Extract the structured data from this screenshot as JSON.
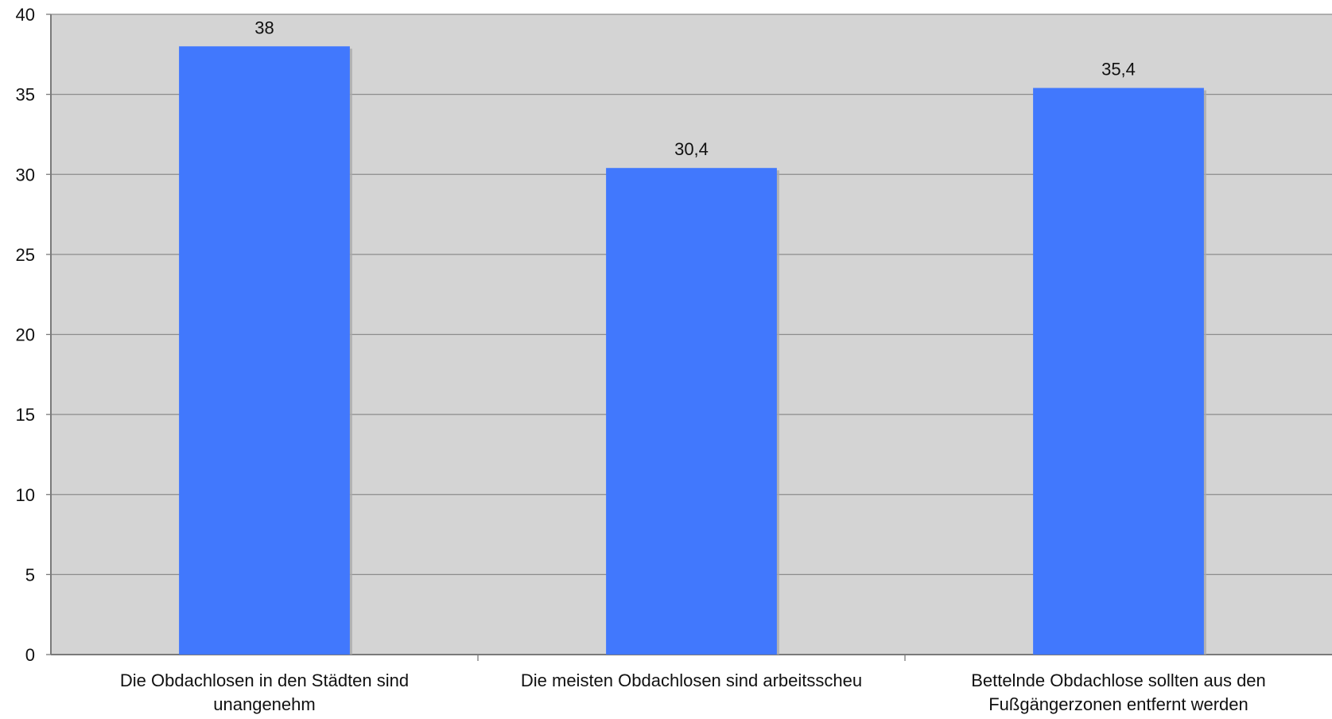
{
  "chart_data": {
    "type": "bar",
    "categories": [
      [
        "Die Obdachlosen in den Städten sind",
        "unangenehm"
      ],
      [
        "Die meisten Obdachlosen sind arbeitsscheu"
      ],
      [
        "Bettelnde Obdachlose sollten aus den",
        "Fußgängerzonen entfernt werden"
      ]
    ],
    "values": [
      38,
      30.4,
      35.4
    ],
    "value_labels": [
      "38",
      "30,4",
      "35,4"
    ],
    "ylim": [
      0,
      40
    ],
    "yticks": [
      0,
      5,
      10,
      15,
      20,
      25,
      30,
      35,
      40
    ],
    "grid": true,
    "legend": "none",
    "colors": {
      "bar": "#4178fd",
      "plot_background": "#d4d4d4",
      "gridline": "#8c8c8c",
      "bar_shadow": "#a9a9a9"
    }
  }
}
